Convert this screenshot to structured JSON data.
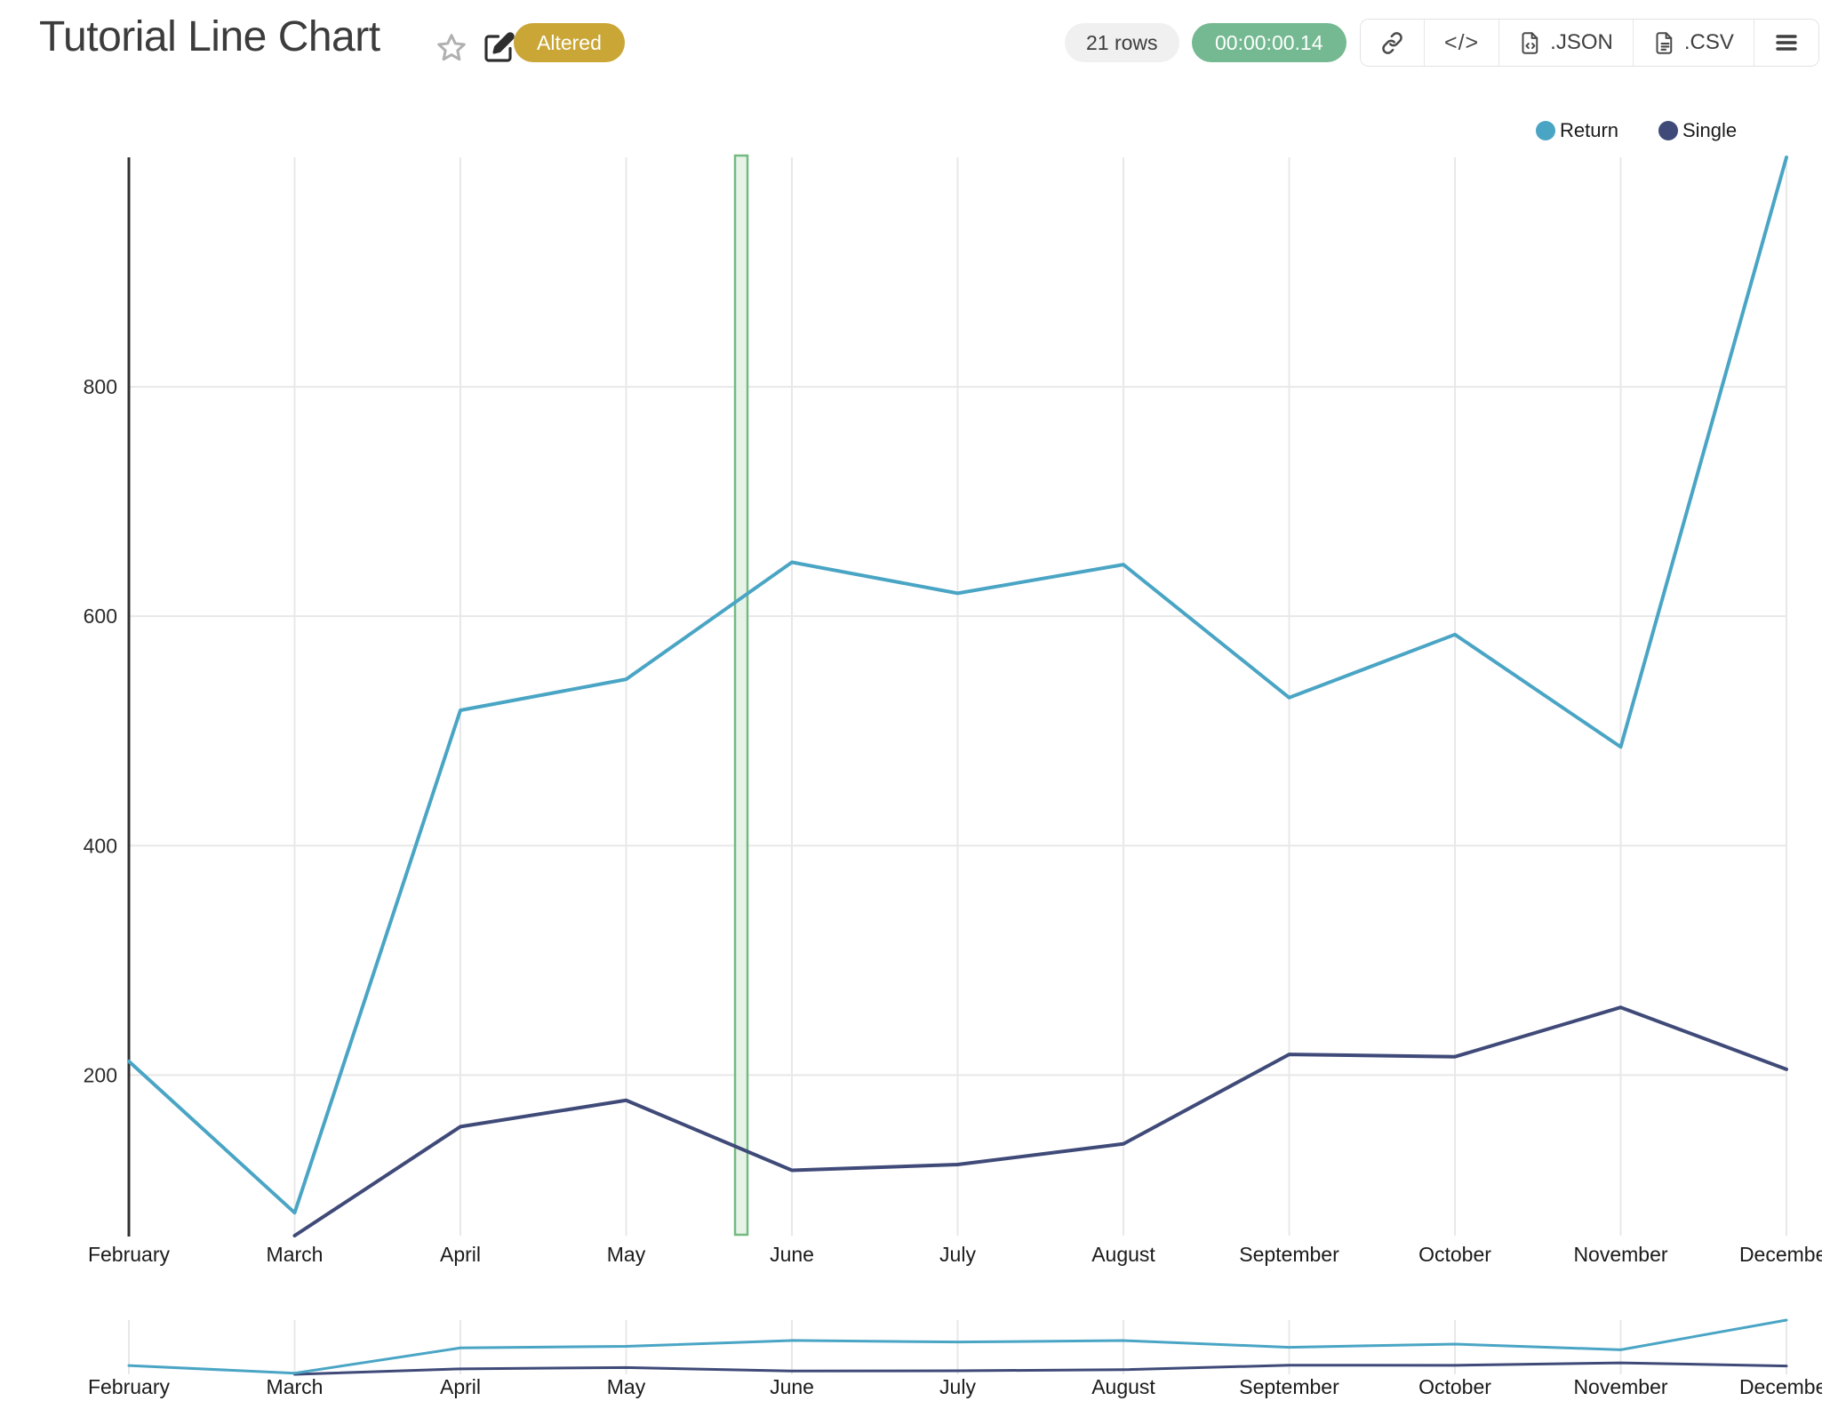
{
  "header": {
    "title": "Tutorial Line Chart",
    "altered_badge": "Altered",
    "rows_pill": "21 rows",
    "timer_pill": "00:00:00.14",
    "export_json_label": ".JSON",
    "export_csv_label": ".CSV",
    "code_glyph": "</>"
  },
  "icons": {
    "favorite": "star-icon",
    "edit": "pencil-square-icon",
    "share": "link-icon",
    "embed": "code-icon",
    "json_file": "file-code-icon",
    "csv_file": "file-text-icon",
    "menu": "hamburger-icon"
  },
  "legend": {
    "items": [
      {
        "label": "Return",
        "color": "#4AA5C5"
      },
      {
        "label": "Single",
        "color": "#3F4A78"
      }
    ]
  },
  "colors": {
    "accent_teal": "#4AA5C5",
    "accent_navy": "#3F4A78",
    "badge_gold": "#C9A636",
    "timer_green": "#74B991",
    "gridline": "#E8E8E8",
    "axis_line": "#303030",
    "axis_label": "#1B1B1B",
    "band_fill": "#E6F2E6",
    "band_stroke": "#73BA80"
  },
  "chart_data": {
    "type": "line",
    "title": "Tutorial Line Chart",
    "categories": [
      "February",
      "March",
      "April",
      "May",
      "June",
      "July",
      "August",
      "September",
      "October",
      "November",
      "December"
    ],
    "series": [
      {
        "name": "Return",
        "color": "#4AA5C5",
        "values": [
          212,
          80,
          518,
          545,
          647,
          620,
          645,
          529,
          584,
          486,
          1000
        ]
      },
      {
        "name": "Single",
        "color": "#3F4A78",
        "values": [
          null,
          60,
          155,
          178,
          117,
          122,
          140,
          218,
          216,
          259,
          205
        ]
      }
    ],
    "xlabel": "",
    "ylabel": "",
    "y_ticks": [
      200,
      400,
      600,
      800
    ],
    "y_domain": [
      60,
      1000
    ],
    "grid": true,
    "legend_position": "top-right",
    "annotation_band": {
      "from_category_fraction": 3.657,
      "to_category_fraction": 3.732,
      "fill": "#E6F2E6",
      "stroke": "#73BA80"
    },
    "mini_overview_chart": true
  }
}
